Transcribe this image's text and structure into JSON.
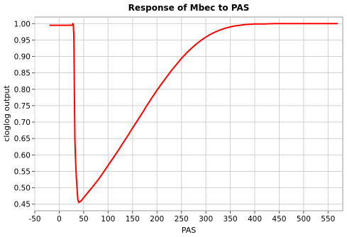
{
  "chart_data": {
    "type": "line",
    "title": "Response of Mbec to PAS",
    "xlabel": "PAS",
    "ylabel": "cloglog output",
    "xlim": [
      -50,
      580
    ],
    "ylim": [
      0.43,
      1.02
    ],
    "xticks": [
      -50,
      0,
      50,
      100,
      150,
      200,
      250,
      300,
      350,
      400,
      450,
      500,
      550
    ],
    "yticks": [
      0.45,
      0.5,
      0.55,
      0.6,
      0.65,
      0.7,
      0.75,
      0.8,
      0.85,
      0.9,
      0.95,
      1.0
    ],
    "xtick_labels": [
      "-50",
      "0",
      "50",
      "100",
      "150",
      "200",
      "250",
      "300",
      "350",
      "400",
      "450",
      "500",
      "550"
    ],
    "ytick_labels": [
      "0.45",
      "0.50",
      "0.55",
      "0.60",
      "0.65",
      "0.70",
      "0.75",
      "0.80",
      "0.85",
      "0.90",
      "0.95",
      "1.00"
    ],
    "grid": true,
    "series": [
      {
        "color": "#ff0000",
        "x": [
          -20,
          0,
          26,
          28,
          29,
          30,
          31,
          32,
          33,
          35,
          38,
          40,
          45,
          50,
          60,
          70,
          80,
          90,
          100,
          110,
          120,
          130,
          140,
          150,
          160,
          170,
          180,
          190,
          200,
          210,
          220,
          230,
          240,
          250,
          260,
          270,
          280,
          290,
          300,
          310,
          320,
          330,
          340,
          350,
          360,
          370,
          380,
          390,
          400,
          420,
          440,
          460,
          480,
          500,
          520,
          540,
          570
        ],
        "y": [
          0.995,
          0.995,
          0.995,
          1.0,
          0.995,
          0.96,
          0.8,
          0.65,
          0.6,
          0.53,
          0.465,
          0.455,
          0.46,
          0.47,
          0.488,
          0.506,
          0.525,
          0.546,
          0.568,
          0.59,
          0.612,
          0.635,
          0.658,
          0.682,
          0.705,
          0.728,
          0.752,
          0.775,
          0.797,
          0.818,
          0.838,
          0.858,
          0.876,
          0.894,
          0.91,
          0.924,
          0.937,
          0.949,
          0.959,
          0.968,
          0.975,
          0.981,
          0.986,
          0.99,
          0.993,
          0.995,
          0.997,
          0.998,
          0.999,
          0.999,
          1.0,
          1.0,
          1.0,
          1.0,
          1.0,
          1.0,
          1.0
        ]
      }
    ]
  }
}
